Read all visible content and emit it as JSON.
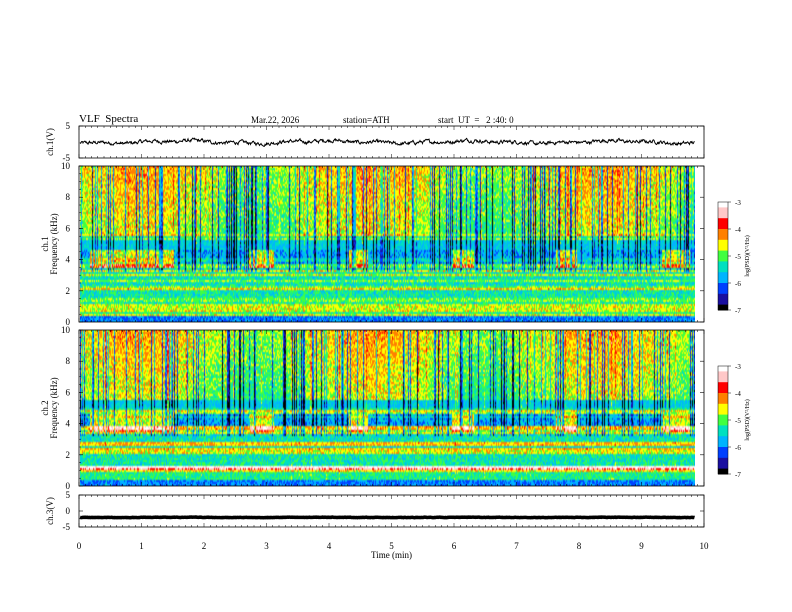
{
  "header": {
    "title": "VLF  Spectra",
    "date": "Mar.22, 2026",
    "station": "station=ATH",
    "start_ut": "start  UT  =   2 :40: 0"
  },
  "chart_data": [
    {
      "id": "ch1-waveform",
      "type": "line",
      "ylabel": "ch.1(V)",
      "ylim": [
        -5,
        5
      ],
      "yticks": [
        "5",
        "-5"
      ],
      "xlim": [
        0,
        10
      ],
      "series": [
        {
          "mean": 0.0,
          "amplitude_V": 1.0
        }
      ]
    },
    {
      "id": "ch1-spectrogram",
      "type": "heatmap",
      "ylabel_line1": "ch.1",
      "ylabel_line2": "Frequency (kHz)",
      "ylim": [
        0,
        10
      ],
      "yticks": [
        "0",
        "2",
        "4",
        "6",
        "8",
        "10"
      ],
      "xlim": [
        0,
        10
      ],
      "colorbar": {
        "label": "log(PSD)(V²/Hz)",
        "range": [
          -7,
          -3
        ],
        "ticks": [
          "-3",
          "-4",
          "-5",
          "-6",
          "-7"
        ]
      },
      "bursts_min": [
        [
          0.15,
          1.5
        ],
        [
          2.7,
          3.1
        ],
        [
          4.3,
          4.6
        ],
        [
          5.95,
          6.3
        ],
        [
          7.6,
          7.95
        ],
        [
          9.3,
          9.75
        ]
      ],
      "burst_band_kHz": [
        3.5,
        4.5
      ]
    },
    {
      "id": "ch2-spectrogram",
      "type": "heatmap",
      "ylabel_line1": "ch.2",
      "ylabel_line2": "Frequency (kHz)",
      "ylim": [
        0,
        10
      ],
      "yticks": [
        "0",
        "2",
        "4",
        "6",
        "8",
        "10"
      ],
      "xlim": [
        0,
        10
      ],
      "colorbar": {
        "label": "log(PSD)(V²/Hz)",
        "range": [
          -7,
          -3
        ],
        "ticks": [
          "-3",
          "-4",
          "-5",
          "-6",
          "-7"
        ]
      },
      "bursts_min": [
        [
          0.15,
          1.5
        ],
        [
          2.7,
          3.1
        ],
        [
          4.3,
          4.6
        ],
        [
          5.95,
          6.3
        ],
        [
          7.6,
          7.95
        ],
        [
          9.3,
          9.75
        ]
      ],
      "burst_band_kHz": [
        3.5,
        4.5
      ]
    },
    {
      "id": "ch3-waveform",
      "type": "line",
      "ylabel": "ch.3(V)",
      "ylim": [
        -5,
        5
      ],
      "yticks": [
        "5",
        "0",
        "-5"
      ],
      "xlim": [
        0,
        10
      ],
      "series": [
        {
          "mean": -2.0,
          "amplitude_V": 0.1
        }
      ]
    }
  ],
  "xaxis": {
    "label": "Time  (min)",
    "ticks": [
      "0",
      "1",
      "2",
      "3",
      "4",
      "5",
      "6",
      "7",
      "8",
      "9",
      "10"
    ],
    "data_end_min": 9.85
  },
  "colors": {
    "cmap": [
      "#000000",
      "#1a0fa0",
      "#0040ff",
      "#00b4ff",
      "#00e0c0",
      "#40ff40",
      "#ffff00",
      "#ff8000",
      "#ff0000",
      "#ffc8c8",
      "#ffffff"
    ],
    "trace": "#000000"
  }
}
